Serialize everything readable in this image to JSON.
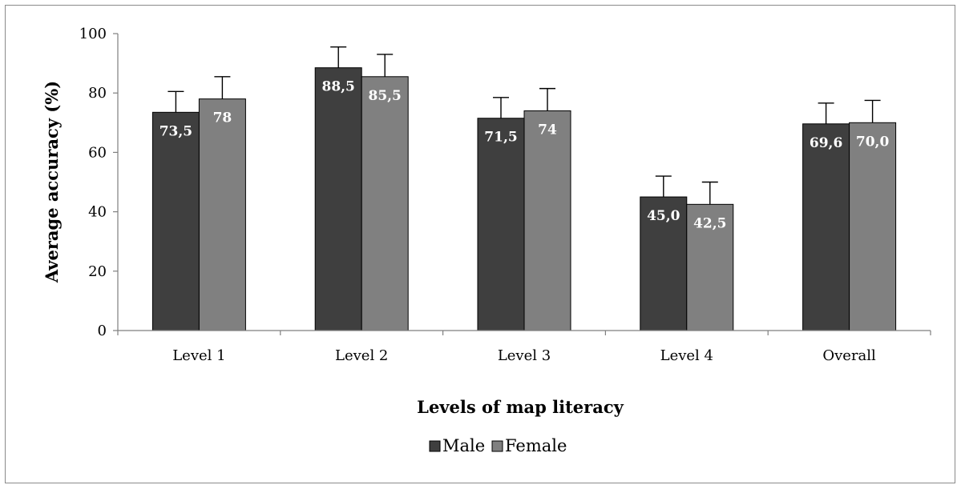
{
  "chart_data": {
    "type": "bar",
    "title": "",
    "xlabel": "Levels of map literacy",
    "ylabel": "Average accuracy (%)",
    "ylim": [
      0,
      100
    ],
    "yticks": [
      "0",
      "20",
      "40",
      "60",
      "80",
      "100"
    ],
    "categories": [
      "Level 1",
      "Level 2",
      "Level 3",
      "Level 4",
      "Overall"
    ],
    "series": [
      {
        "name": "Male",
        "color": "#3f3f3f",
        "values": [
          73.5,
          88.5,
          71.5,
          45.0,
          69.6
        ],
        "labels": [
          "73,5",
          "88,5",
          "71,5",
          "45,0",
          "69,6"
        ],
        "errors": [
          7,
          7,
          7,
          7,
          7
        ]
      },
      {
        "name": "Female",
        "color": "#808080",
        "values": [
          78,
          85.5,
          74,
          42.5,
          70.0
        ],
        "labels": [
          "78",
          "85,5",
          "74",
          "42,5",
          "70,0"
        ],
        "errors": [
          7.5,
          7.5,
          7.5,
          7.5,
          7.5
        ]
      }
    ],
    "legend_position": "bottom",
    "grid": false
  }
}
